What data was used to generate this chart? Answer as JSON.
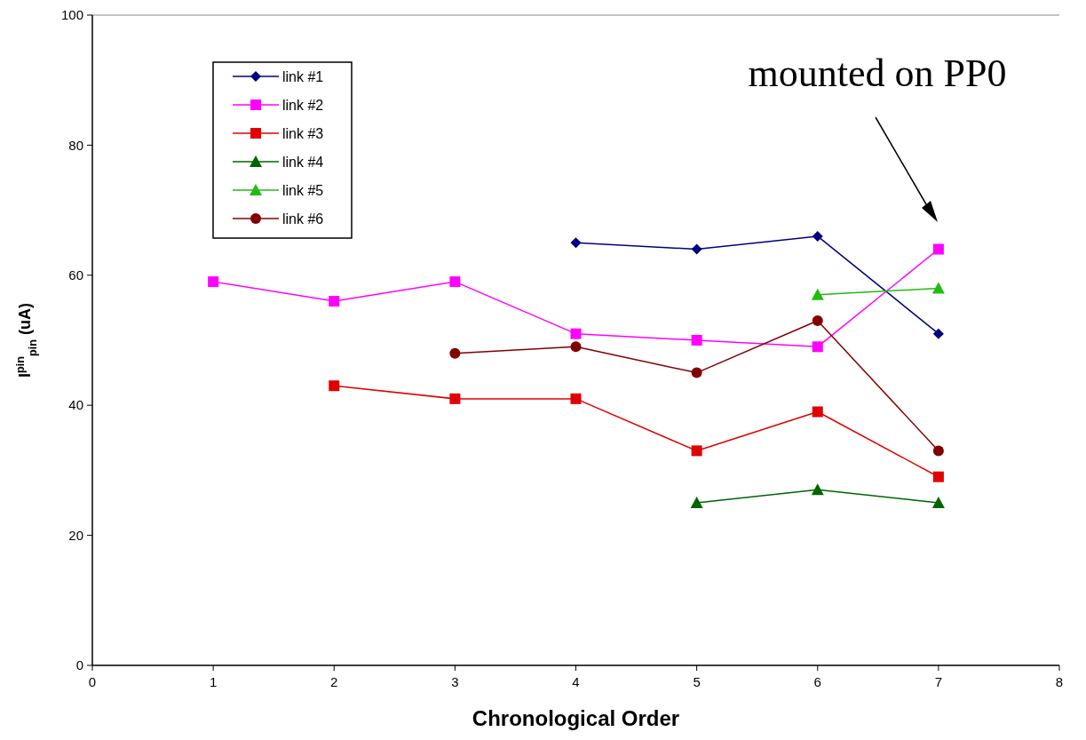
{
  "chart_data": {
    "type": "line",
    "xlabel": "Chronological Order",
    "ylabel": "I$^{pin}$$_{pin}$ (uA)",
    "x": [
      1,
      2,
      3,
      4,
      5,
      6,
      7
    ],
    "xlim": [
      0,
      8
    ],
    "xticks": [
      0,
      1,
      2,
      3,
      4,
      5,
      6,
      7,
      8
    ],
    "ylim": [
      0,
      100
    ],
    "yticks": [
      0,
      20,
      40,
      60,
      80,
      100
    ],
    "legend": "top left",
    "series": [
      {
        "name": "link #1",
        "color": "#000080",
        "marker": "diamond",
        "values": [
          null,
          null,
          null,
          65,
          64,
          66,
          51
        ]
      },
      {
        "name": "link #2",
        "color": "#ff00ff",
        "marker": "square",
        "values": [
          59,
          56,
          59,
          51,
          50,
          49,
          64
        ]
      },
      {
        "name": "link #3",
        "color": "#e00000",
        "marker": "square",
        "values": [
          null,
          43,
          41,
          41,
          33,
          39,
          29
        ]
      },
      {
        "name": "link #4",
        "color": "#006400",
        "marker": "triangle",
        "values": [
          null,
          null,
          null,
          null,
          25,
          27,
          25
        ]
      },
      {
        "name": "link #5",
        "color": "#22bb11",
        "marker": "triangle",
        "values": [
          null,
          null,
          null,
          null,
          null,
          57,
          58
        ]
      },
      {
        "name": "link #6",
        "color": "#800000",
        "marker": "circle",
        "values": [
          null,
          null,
          48,
          49,
          45,
          53,
          33
        ]
      }
    ],
    "annotations": [
      "mounted on PP0"
    ]
  }
}
